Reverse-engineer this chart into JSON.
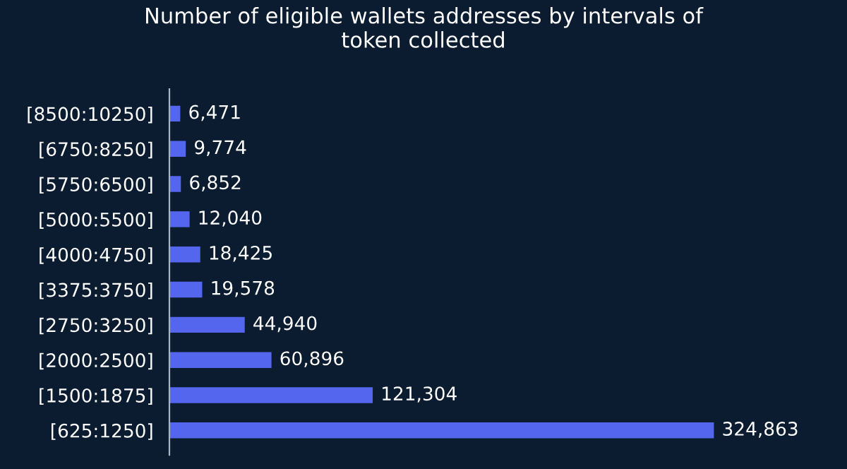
{
  "chart_data": {
    "type": "bar",
    "orientation": "horizontal",
    "title": "Number of eligible wallets addresses by intervals of\ntoken collected",
    "categories": [
      "[8500:10250]",
      "[6750:8250]",
      "[5750:6500]",
      "[5000:5500]",
      "[4000:4750]",
      "[3375:3750]",
      "[2750:3250]",
      "[2000:2500]",
      "[1500:1875]",
      "[625:1250]"
    ],
    "values": [
      6471,
      9774,
      6852,
      12040,
      18425,
      19578,
      44940,
      60896,
      121304,
      324863
    ],
    "value_labels": [
      "6,471",
      "9,774",
      "6,852",
      "12,040",
      "18,425",
      "19,578",
      "44,940",
      "60,896",
      "121,304",
      "324,863"
    ],
    "color": "#5566ee",
    "grid": false,
    "legend": false
  }
}
